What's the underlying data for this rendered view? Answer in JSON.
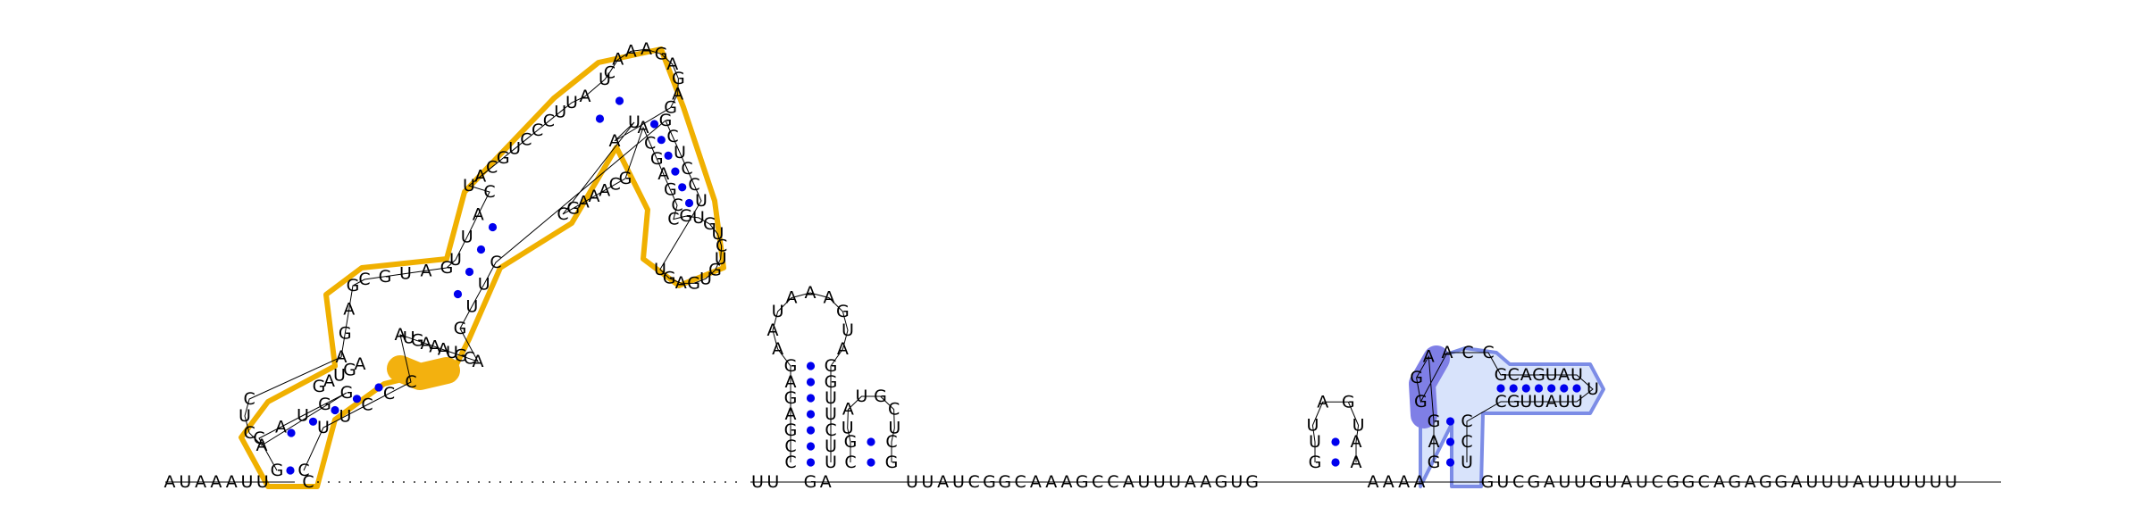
{
  "diagram": {
    "type": "rna-secondary-structure",
    "colors": {
      "backbone": "#000000",
      "base_pair": "#0000ee",
      "highlight_orange_outline": "#f0b000",
      "highlight_orange_fill": "#f3b10f",
      "highlight_blue_outline": "#7c8ce6",
      "highlight_blue_fill": "#d8e3fb",
      "highlight_purple_fill": "#7f7fe6"
    },
    "domain1": {
      "outer_stem_5p": [
        "G"
      ],
      "outer_stem_3p": [
        "C"
      ],
      "stem2_5p": [
        "C",
        "A",
        "U",
        "G",
        "G"
      ],
      "stem2_3p": [
        "U",
        "U",
        "C",
        "C",
        "C"
      ],
      "interior_loop_5p": [
        "G",
        "A",
        "U",
        "G",
        "A"
      ],
      "interior_loop_3p": [
        "C",
        "A",
        "A"
      ],
      "hairpin1_loop": [
        "C",
        "U",
        "C",
        "A"
      ],
      "multiloop_left": [
        "A",
        "G",
        "A",
        "G"
      ],
      "multiloop_top": [
        "C",
        "G",
        "U",
        "A",
        "G"
      ],
      "multiloop_right": [
        "A",
        "C",
        "G",
        "U",
        "A",
        "A",
        "A",
        "G",
        "U",
        "A"
      ],
      "stem3_5p": [
        "U",
        "U",
        "A",
        "C"
      ],
      "stem3_3p": [
        "G",
        "U",
        "U",
        "C"
      ],
      "internal2_5p": [
        "U",
        "A",
        "C",
        "G",
        "U",
        "C",
        "C",
        "C",
        "U",
        "U"
      ],
      "internal2_3p": [
        "G",
        "C",
        "A",
        "A",
        "A",
        "G",
        "C"
      ],
      "stem4_5p": [
        "A",
        "U"
      ],
      "stem4_3p": [
        "A",
        "U"
      ],
      "hairpin2_loop": [
        "C",
        "A",
        "A",
        "A",
        "G",
        "A",
        "G",
        "A",
        "G"
      ],
      "stem5_5p": [
        "A",
        "C",
        "G",
        "A",
        "G",
        "C"
      ],
      "stem5_3p": [
        "G",
        "C",
        "U",
        "C",
        "C",
        "U"
      ],
      "hairpin3_loop": [
        "C",
        "G",
        "U",
        "G",
        "U",
        "C",
        "U",
        "G",
        "U",
        "G",
        "A",
        "G",
        "U"
      ]
    },
    "hairpin_a": {
      "stem_5p": [
        "C",
        "C",
        "G",
        "A",
        "G",
        "A",
        "G"
      ],
      "stem_3p": [
        "U",
        "U",
        "C",
        "U",
        "U",
        "G",
        "G"
      ],
      "loop": [
        "A",
        "A",
        "U",
        "A",
        "A",
        "A",
        "G",
        "U",
        "A"
      ]
    },
    "hairpin_b": {
      "stem_5p": [
        "C",
        "G"
      ],
      "stem_3p": [
        "G",
        "C"
      ],
      "loop": [
        "U",
        "A",
        "U",
        "G",
        "C",
        "U"
      ]
    },
    "hairpin_c": {
      "stem_5p": [
        "G",
        "U"
      ],
      "stem_3p": [
        "A",
        "A"
      ],
      "loop": [
        "U",
        "A",
        "G",
        "U"
      ]
    },
    "domain2": {
      "stem_5p": [
        "G",
        "A",
        "G"
      ],
      "stem_3p": [
        "U",
        "C",
        "C"
      ],
      "loop_left": [
        "G",
        "G",
        "A"
      ],
      "loop_top": [
        "A",
        "C",
        "C"
      ],
      "arm_top": [
        "G",
        "C",
        "A",
        "G",
        "U",
        "A",
        "U"
      ],
      "arm_bottom": [
        "C",
        "G",
        "U",
        "U",
        "A",
        "U",
        "U"
      ],
      "arm_tip": [
        "U"
      ]
    },
    "baseline": {
      "left": [
        "A",
        "U",
        "A",
        "A",
        "A",
        "U",
        "U"
      ],
      "right_of_domain1": [
        "C"
      ],
      "before_hairpin_a": [
        "U",
        "U"
      ],
      "between_a_and_b": [
        "G",
        "A"
      ],
      "between_b_and_c": [
        "U",
        "U",
        "A",
        "U",
        "C",
        "G",
        "G",
        "C",
        "A",
        "A",
        "A",
        "G",
        "C",
        "C",
        "A",
        "U",
        "U",
        "U",
        "A",
        "A",
        "G",
        "U",
        "G"
      ],
      "between_c_and_domain2": [
        "A",
        "A",
        "A",
        "A"
      ],
      "tail": [
        "G",
        "U",
        "C",
        "G",
        "A",
        "U",
        "U",
        "G",
        "U",
        "A",
        "U",
        "C",
        "G",
        "G",
        "C",
        "A",
        "G",
        "A",
        "G",
        "G",
        "A",
        "U",
        "U",
        "U",
        "A",
        "U",
        "U",
        "U",
        "U",
        "U",
        "U"
      ]
    }
  }
}
